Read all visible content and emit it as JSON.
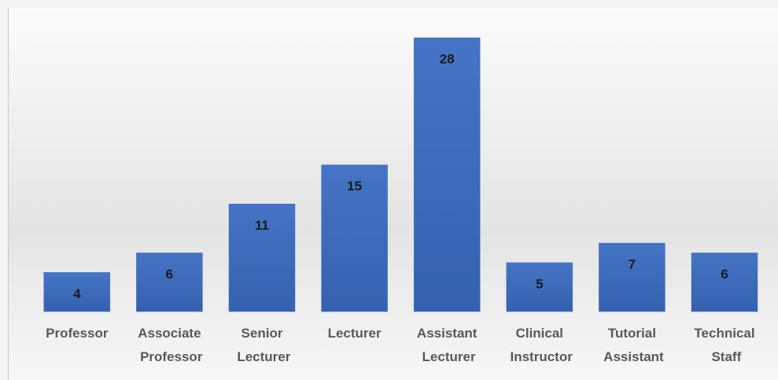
{
  "chart_data": {
    "type": "bar",
    "categories": [
      "Professor",
      "Associate Professor",
      "Senior Lecturer",
      "Lecturer",
      "Assistant Lecturer",
      "Clinical Instructor",
      "Tutorial Assistant",
      "Technical Staff"
    ],
    "values": [
      4,
      6,
      11,
      15,
      28,
      5,
      7,
      6
    ],
    "color": "#4472c4",
    "data_labels": true
  }
}
